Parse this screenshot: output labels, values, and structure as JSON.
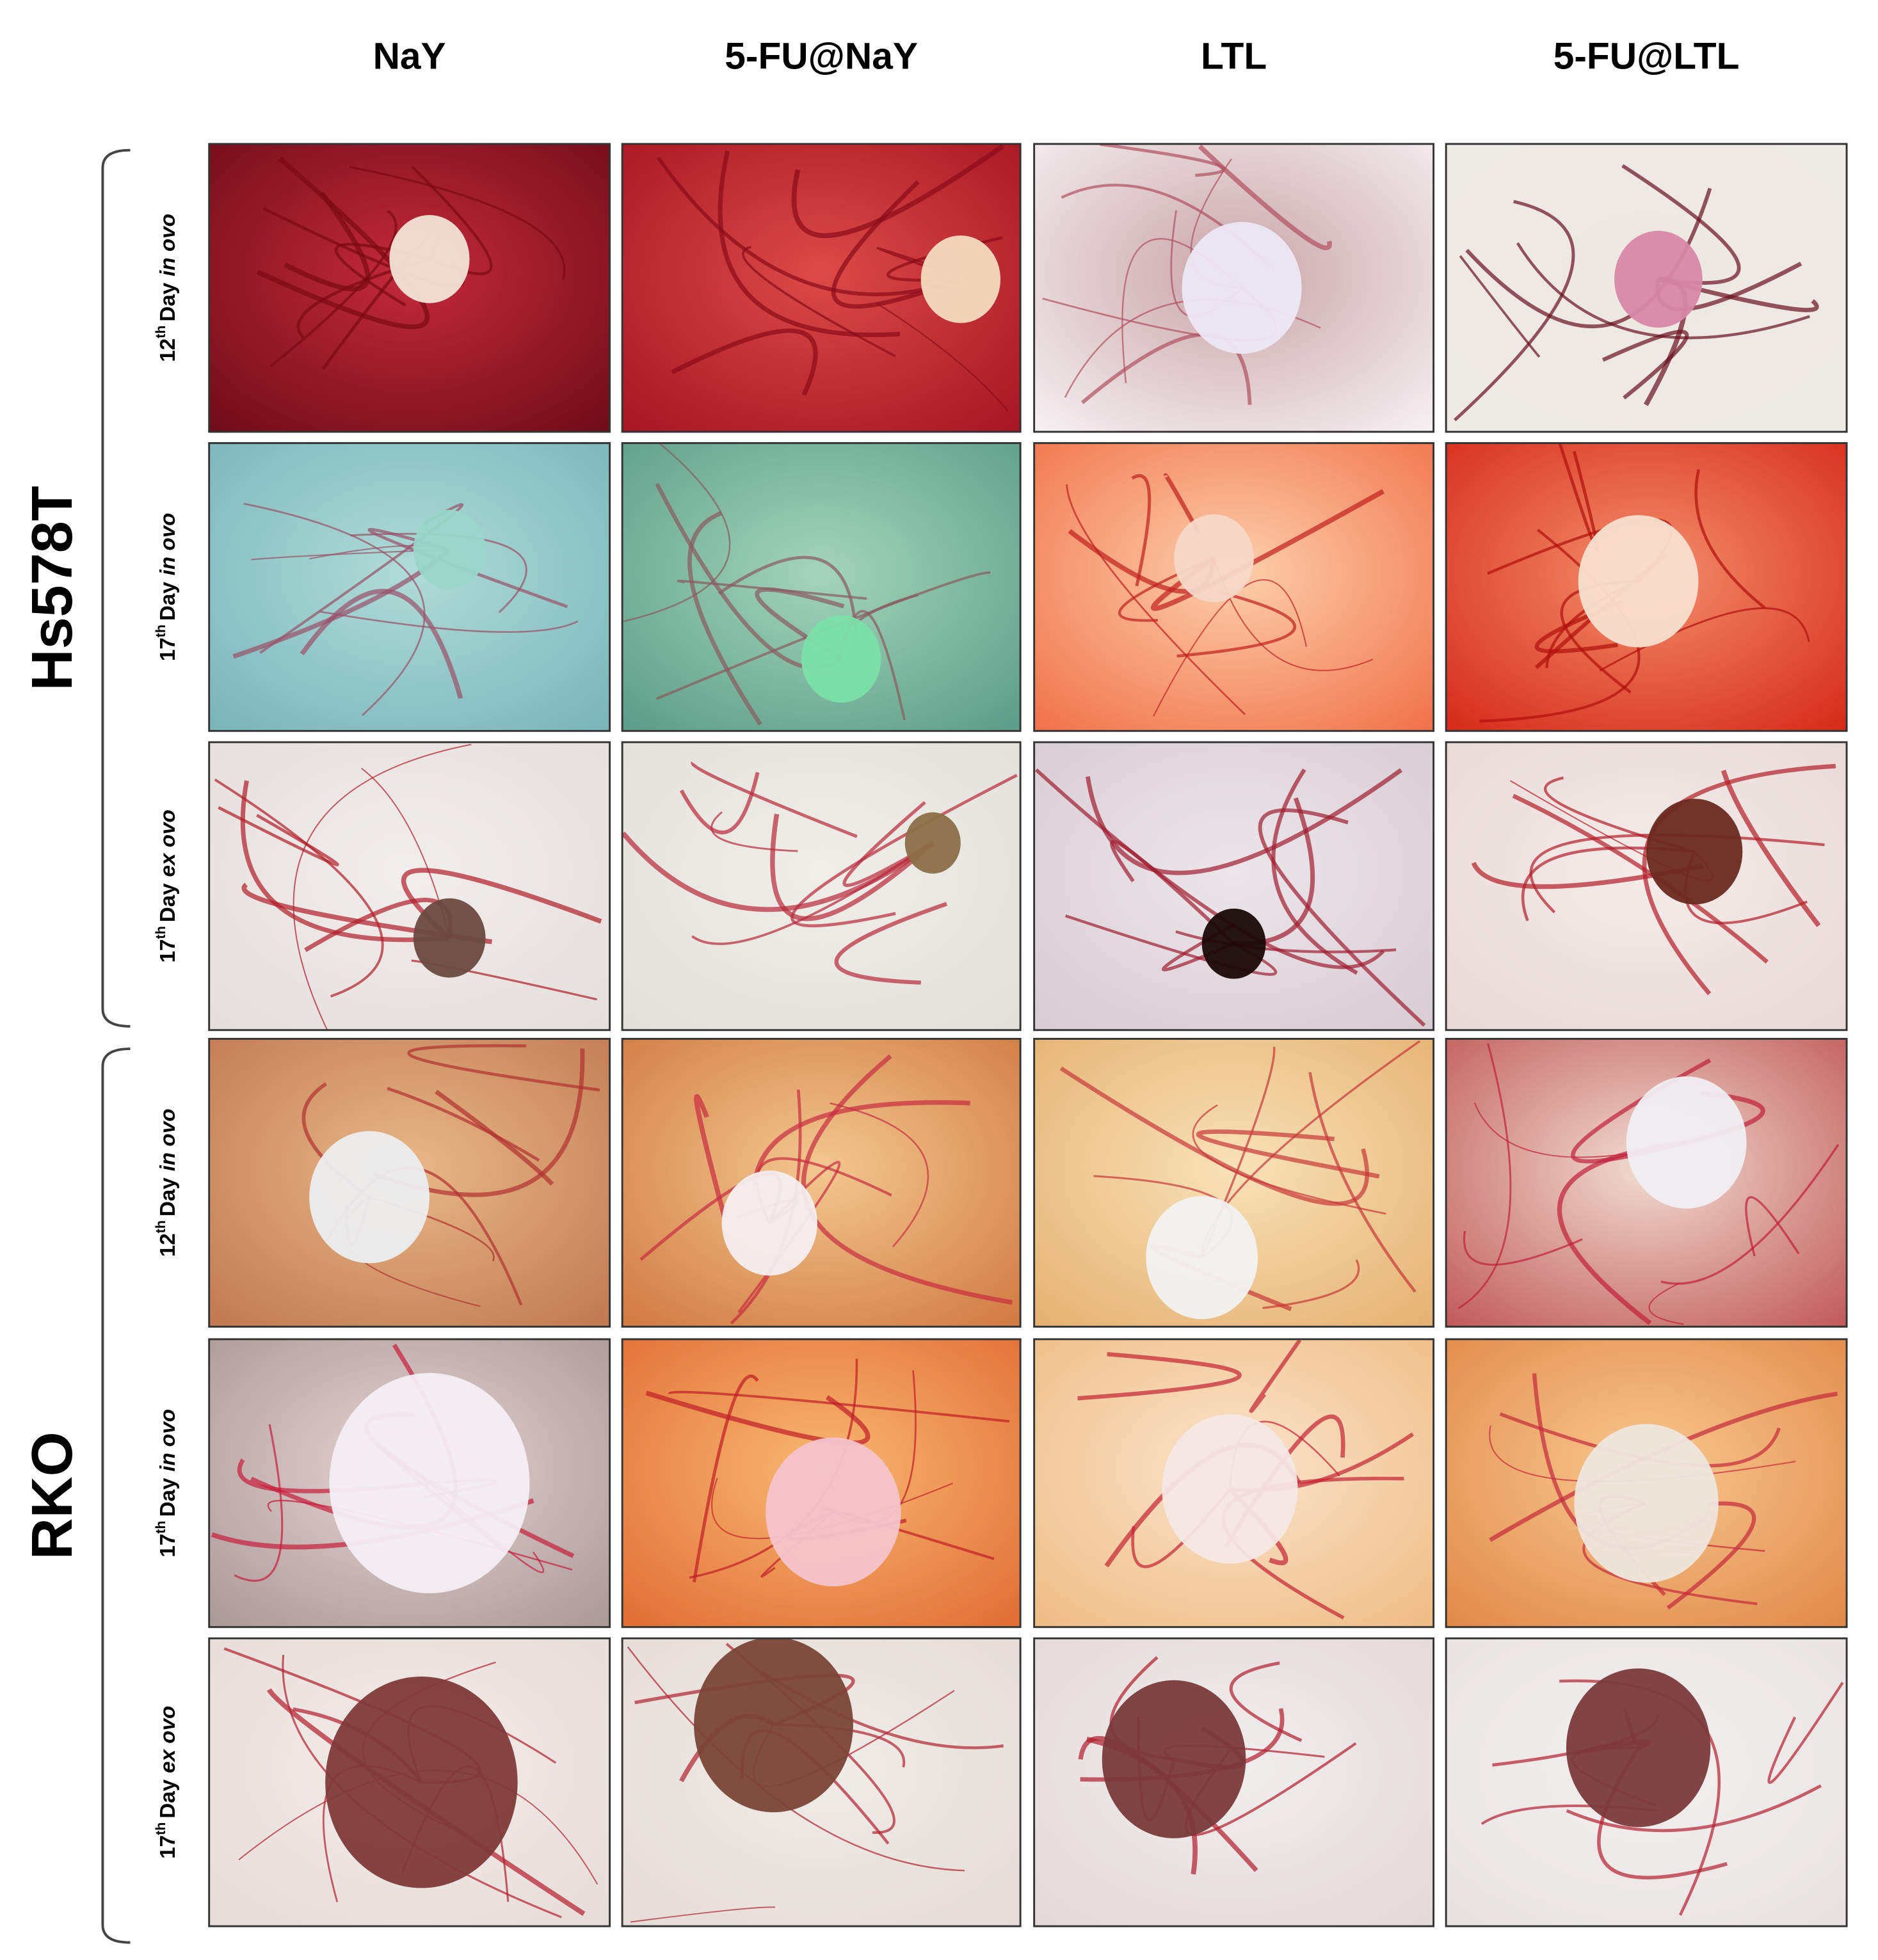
{
  "column_headers": [
    "NaY",
    "5-FU@NaY",
    "LTL",
    "5-FU@LTL"
  ],
  "groups": [
    {
      "name": "Hs578T",
      "rows": [
        {
          "day": "12",
          "ordinal": "th",
          "word": "Day",
          "condition": "in ovo"
        },
        {
          "day": "17",
          "ordinal": "th",
          "word": "Day",
          "condition": "in ovo"
        },
        {
          "day": "17",
          "ordinal": "th",
          "word": "Day",
          "condition": "ex ovo"
        }
      ]
    },
    {
      "name": "RKO",
      "rows": [
        {
          "day": "12",
          "ordinal": "th",
          "word": "Day",
          "condition": "in ovo"
        },
        {
          "day": "17",
          "ordinal": "th",
          "word": "Day",
          "condition": "in ovo"
        },
        {
          "day": "17",
          "ordinal": "th",
          "word": "Day",
          "condition": "ex ovo"
        }
      ]
    }
  ]
}
